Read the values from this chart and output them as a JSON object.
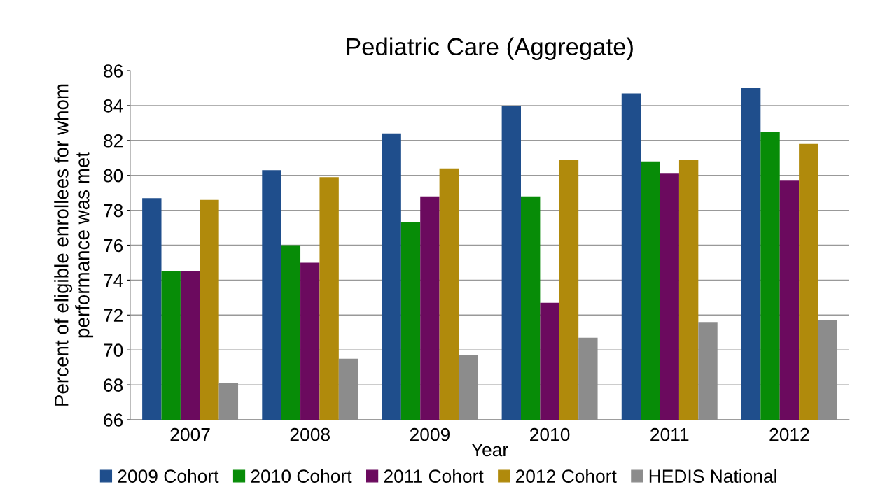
{
  "chart_data": {
    "type": "bar",
    "title": "Pediatric Care (Aggregate)",
    "xlabel": "Year",
    "ylabel": "Percent of eligible enrollees for whom\nperformance was met",
    "categories": [
      "2007",
      "2008",
      "2009",
      "2010",
      "2011",
      "2012"
    ],
    "series": [
      {
        "name": "2009 Cohort",
        "color": "#1f4e8c",
        "values": [
          78.7,
          80.3,
          82.4,
          84.0,
          84.7,
          85.0
        ]
      },
      {
        "name": "2010 Cohort",
        "color": "#078c07",
        "values": [
          74.5,
          76.0,
          77.3,
          78.8,
          80.8,
          82.5
        ]
      },
      {
        "name": "2011 Cohort",
        "color": "#6b0a5e",
        "values": [
          74.5,
          75.0,
          78.8,
          72.7,
          80.1,
          79.7
        ]
      },
      {
        "name": "2012 Cohort",
        "color": "#b08a0c",
        "values": [
          78.6,
          79.9,
          80.4,
          80.9,
          80.9,
          81.8
        ]
      },
      {
        "name": "HEDIS National",
        "color": "#8c8c8c",
        "values": [
          68.1,
          69.5,
          69.7,
          70.7,
          71.6,
          71.7
        ]
      }
    ],
    "ylim": [
      66,
      86
    ],
    "yticks": [
      66,
      68,
      70,
      72,
      74,
      76,
      78,
      80,
      82,
      84,
      86
    ],
    "grid": "y",
    "legend": "bottom"
  }
}
